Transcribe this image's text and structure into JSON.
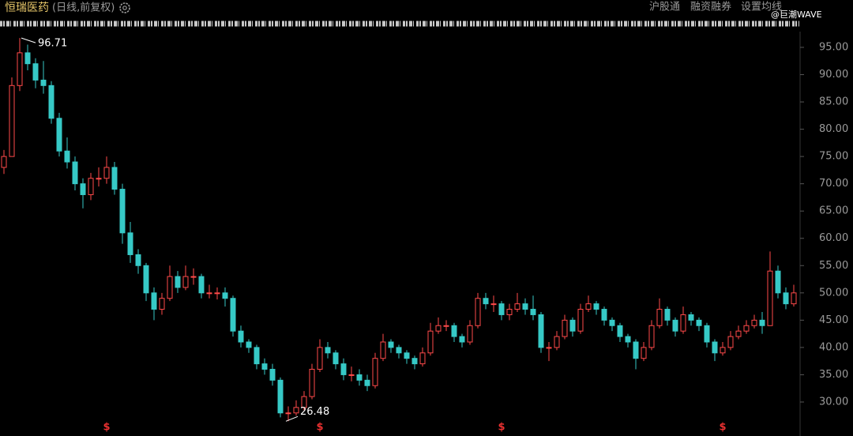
{
  "chart_data": {
    "type": "candlestick",
    "title": "恒瑞医药",
    "subtitle": "(日线,前复权)",
    "menu": [
      "沪股通",
      "融资融券",
      "设置均线"
    ],
    "watermark": "@巨潮WAVE",
    "up_color": "#ff4a4a",
    "down_color": "#36c9c6",
    "ylim": [
      24.35,
      97.6
    ],
    "yticks": [
      {
        "value": 30,
        "label": "30.00"
      },
      {
        "value": 35,
        "label": "35.00"
      },
      {
        "value": 40,
        "label": "40.00"
      },
      {
        "value": 45,
        "label": "45.00"
      },
      {
        "value": 50,
        "label": "50.00"
      },
      {
        "value": 55,
        "label": "55.00"
      },
      {
        "value": 60,
        "label": "60.00"
      },
      {
        "value": 65,
        "label": "65.00"
      },
      {
        "value": 70,
        "label": "70.00"
      },
      {
        "value": 75,
        "label": "75.00"
      },
      {
        "value": 80,
        "label": "80.00"
      },
      {
        "value": 85,
        "label": "85.00"
      },
      {
        "value": 90,
        "label": "90.00"
      },
      {
        "value": 95,
        "label": "95.00"
      }
    ],
    "grid": false,
    "open": [
      73,
      75,
      88,
      94,
      92,
      89,
      88,
      82,
      76,
      74,
      70,
      68,
      71,
      71,
      73,
      69,
      61,
      57,
      55,
      50,
      47,
      49,
      53,
      51,
      53,
      53,
      50,
      50,
      50,
      49,
      43,
      41,
      40,
      37,
      36,
      34,
      28,
      28,
      29,
      31,
      36,
      40,
      39,
      37,
      35,
      35,
      34,
      33,
      38,
      41,
      40,
      39,
      38,
      37,
      39,
      43,
      44,
      44,
      42,
      41,
      44,
      49,
      48,
      48,
      46,
      47,
      48,
      47,
      46,
      40,
      40,
      42,
      45,
      43,
      47,
      48,
      47,
      45,
      44,
      42,
      41,
      38,
      40,
      44,
      47,
      45,
      43,
      46,
      45,
      44,
      41,
      39,
      40,
      42,
      43,
      44,
      45,
      44,
      54,
      50,
      48
    ],
    "high": [
      76.2,
      89.5,
      96.71,
      95.5,
      93,
      92.5,
      88.8,
      83,
      78.5,
      75,
      71,
      72,
      73,
      75,
      74,
      70,
      63,
      58,
      55.5,
      51,
      50,
      55,
      54,
      55,
      54.5,
      53.5,
      51.5,
      51,
      51,
      49.5,
      44,
      41.5,
      40.5,
      38,
      37,
      34.5,
      29.2,
      30.3,
      32,
      37,
      41.5,
      41,
      39.5,
      38,
      36.5,
      36,
      35,
      39,
      42.5,
      41.5,
      40.5,
      39.5,
      38.5,
      40,
      44.5,
      45.5,
      45,
      44.5,
      42.5,
      45,
      50,
      50,
      49.5,
      48.5,
      48,
      50,
      49,
      49.5,
      46.5,
      41,
      43,
      46,
      45.5,
      48,
      49.5,
      48.5,
      47.5,
      45.5,
      44.5,
      42.5,
      41.5,
      41,
      45,
      49,
      47.5,
      45.5,
      47.5,
      46.5,
      45.5,
      44.5,
      41.5,
      41,
      43,
      44,
      45,
      46,
      46.5,
      57.6,
      55,
      51,
      51.5
    ],
    "low": [
      71.8,
      75,
      87,
      90.8,
      87.5,
      86.5,
      81,
      75,
      72.8,
      68.8,
      65.5,
      67,
      69.5,
      70,
      68,
      59,
      55.5,
      53.5,
      48.5,
      45,
      46,
      48.5,
      50,
      50.5,
      51.5,
      49,
      49,
      48.8,
      47.5,
      42,
      40,
      39,
      36,
      35,
      33,
      27.2,
      26.48,
      27.5,
      28.5,
      30.5,
      35.5,
      38,
      36,
      34,
      33.8,
      33,
      32,
      32.5,
      37.5,
      39,
      38,
      37,
      36,
      36.5,
      38.5,
      42.5,
      43,
      41,
      40,
      40.5,
      43.5,
      47,
      46.5,
      45,
      45,
      46.5,
      46,
      45,
      39,
      37.5,
      39.5,
      41.5,
      42,
      42.5,
      46.5,
      46,
      44,
      43,
      41,
      40,
      36,
      37.5,
      39.5,
      43.5,
      44,
      42,
      42.5,
      44,
      43,
      40,
      37.5,
      38.5,
      39.5,
      41.5,
      42.5,
      43.5,
      42.5,
      44,
      49,
      47,
      47.5
    ],
    "close": [
      75,
      88,
      94,
      92,
      89,
      88,
      82,
      76,
      74,
      70,
      68,
      71,
      71,
      73,
      69,
      61,
      57,
      55,
      50,
      47,
      49,
      53,
      51,
      53,
      53,
      50,
      50,
      50,
      49,
      43,
      41,
      40,
      37,
      36,
      34,
      28,
      28,
      29,
      31,
      36,
      40,
      39,
      37,
      35,
      35,
      34,
      33,
      38,
      41,
      40,
      39,
      38,
      37,
      39,
      43,
      44,
      44,
      42,
      41,
      44,
      49,
      48,
      48,
      46,
      47,
      48,
      47,
      46,
      40,
      40,
      42,
      45,
      43,
      47,
      48,
      47,
      45,
      44,
      42,
      41,
      38,
      40,
      44,
      47,
      45,
      43,
      46,
      45,
      44,
      41,
      39,
      40,
      42,
      43,
      44,
      45,
      44,
      54,
      50,
      48,
      50
    ],
    "high_label": {
      "index": 2,
      "text": "96.71"
    },
    "low_label": {
      "index": 36,
      "text": "26.48"
    },
    "events": [
      {
        "index": 13,
        "label": "$"
      },
      {
        "index": 40,
        "label": "$"
      },
      {
        "index": 63,
        "label": "$"
      },
      {
        "index": 91,
        "label": "$"
      }
    ]
  }
}
